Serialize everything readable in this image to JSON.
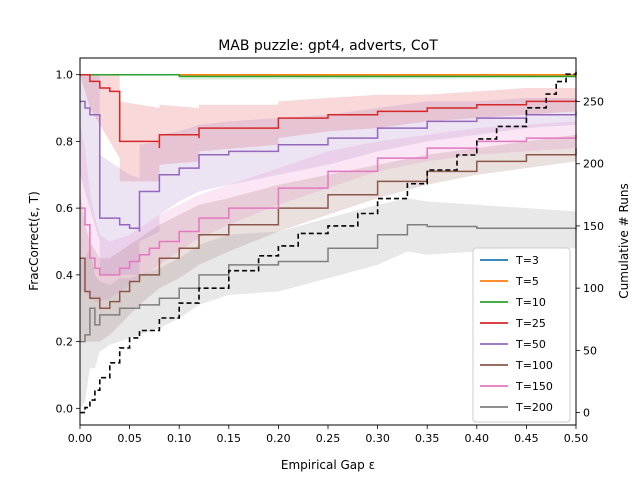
{
  "chart_data": {
    "type": "line",
    "title": "MAB puzzle: gpt4, adverts, CoT",
    "xlabel": "Empirical Gap ε",
    "ylabel": "FracCorrect(ε, T)",
    "y2label": "Cumulative # Runs",
    "xlim": [
      0.0,
      0.5
    ],
    "ylim": [
      -0.05,
      1.05
    ],
    "y2lim": [
      -10,
      285
    ],
    "grid": false,
    "legend_position": "lower-right",
    "x_ticks": [
      "0.00",
      "0.05",
      "0.10",
      "0.15",
      "0.20",
      "0.25",
      "0.30",
      "0.35",
      "0.40",
      "0.45",
      "0.50"
    ],
    "y_ticks": [
      "0.0",
      "0.2",
      "0.4",
      "0.6",
      "0.8",
      "1.0"
    ],
    "y2_ticks": [
      "0",
      "50",
      "100",
      "150",
      "200",
      "250"
    ],
    "x_tick_values": [
      0.0,
      0.05,
      0.1,
      0.15,
      0.2,
      0.25,
      0.3,
      0.35,
      0.4,
      0.45,
      0.5
    ],
    "y_tick_values": [
      0.0,
      0.2,
      0.4,
      0.6,
      0.8,
      1.0
    ],
    "y2_tick_values": [
      0,
      50,
      100,
      150,
      200,
      250
    ],
    "series": [
      {
        "name": "T=3",
        "color": "#1f77b4",
        "x": [
          0.0,
          0.5
        ],
        "y": [
          1.0,
          1.0
        ],
        "lo": [
          1.0,
          1.0
        ],
        "hi": [
          1.0,
          1.0
        ]
      },
      {
        "name": "T=5",
        "color": "#ff7f0e",
        "x": [
          0.0,
          0.5
        ],
        "y": [
          1.0,
          1.0
        ],
        "lo": [
          1.0,
          1.0
        ],
        "hi": [
          1.0,
          1.0
        ]
      },
      {
        "name": "T=10",
        "color": "#2ca02c",
        "x": [
          0.0,
          0.1,
          0.1,
          0.5
        ],
        "y": [
          1.0,
          1.0,
          0.995,
          0.995
        ],
        "lo": [
          1.0,
          1.0,
          0.985,
          0.99
        ],
        "hi": [
          1.0,
          1.0,
          1.0,
          1.0
        ]
      },
      {
        "name": "T=25",
        "color": "#d62728",
        "x": [
          0.0,
          0.01,
          0.02,
          0.03,
          0.04,
          0.04,
          0.08,
          0.08,
          0.12,
          0.12,
          0.2,
          0.2,
          0.25,
          0.3,
          0.35,
          0.4,
          0.45,
          0.5
        ],
        "y": [
          1.0,
          0.98,
          0.96,
          0.95,
          0.94,
          0.8,
          0.78,
          0.82,
          0.81,
          0.84,
          0.85,
          0.87,
          0.88,
          0.89,
          0.9,
          0.91,
          0.92,
          0.925
        ],
        "lo": [
          1.0,
          0.9,
          0.85,
          0.8,
          0.75,
          0.68,
          0.68,
          0.73,
          0.74,
          0.77,
          0.79,
          0.81,
          0.83,
          0.84,
          0.86,
          0.87,
          0.88,
          0.89
        ],
        "hi": [
          1.0,
          1.0,
          1.0,
          1.0,
          1.0,
          0.92,
          0.9,
          0.91,
          0.9,
          0.91,
          0.91,
          0.92,
          0.93,
          0.94,
          0.94,
          0.95,
          0.96,
          0.96
        ]
      },
      {
        "name": "T=50",
        "color": "#9467bd",
        "x": [
          0.0,
          0.005,
          0.01,
          0.015,
          0.02,
          0.02,
          0.04,
          0.05,
          0.06,
          0.06,
          0.08,
          0.08,
          0.1,
          0.12,
          0.15,
          0.2,
          0.25,
          0.3,
          0.35,
          0.4,
          0.45,
          0.5
        ],
        "y": [
          0.92,
          0.9,
          0.88,
          0.88,
          0.86,
          0.57,
          0.55,
          0.54,
          0.53,
          0.65,
          0.66,
          0.7,
          0.72,
          0.76,
          0.77,
          0.79,
          0.81,
          0.84,
          0.86,
          0.87,
          0.88,
          0.89
        ],
        "lo": [
          0.7,
          0.65,
          0.6,
          0.55,
          0.5,
          0.4,
          0.4,
          0.4,
          0.4,
          0.5,
          0.53,
          0.58,
          0.62,
          0.65,
          0.67,
          0.7,
          0.73,
          0.77,
          0.8,
          0.82,
          0.84,
          0.85
        ],
        "hi": [
          1.0,
          1.0,
          1.0,
          1.0,
          1.0,
          0.76,
          0.72,
          0.7,
          0.69,
          0.79,
          0.8,
          0.82,
          0.83,
          0.85,
          0.86,
          0.87,
          0.88,
          0.9,
          0.92,
          0.92,
          0.93,
          0.93
        ]
      },
      {
        "name": "T=100",
        "color": "#8c564b",
        "x": [
          0.0,
          0.005,
          0.01,
          0.02,
          0.03,
          0.04,
          0.05,
          0.06,
          0.08,
          0.1,
          0.12,
          0.15,
          0.2,
          0.25,
          0.3,
          0.35,
          0.4,
          0.45,
          0.5
        ],
        "y": [
          0.45,
          0.35,
          0.33,
          0.3,
          0.32,
          0.35,
          0.38,
          0.4,
          0.45,
          0.48,
          0.52,
          0.55,
          0.6,
          0.64,
          0.68,
          0.71,
          0.74,
          0.76,
          0.78
        ],
        "lo": [
          0.2,
          0.2,
          0.2,
          0.2,
          0.22,
          0.25,
          0.28,
          0.31,
          0.36,
          0.39,
          0.43,
          0.47,
          0.53,
          0.58,
          0.63,
          0.67,
          0.7,
          0.72,
          0.74
        ],
        "hi": [
          0.65,
          0.55,
          0.5,
          0.45,
          0.45,
          0.47,
          0.49,
          0.51,
          0.55,
          0.58,
          0.61,
          0.63,
          0.67,
          0.7,
          0.73,
          0.76,
          0.78,
          0.8,
          0.82
        ]
      },
      {
        "name": "T=150",
        "color": "#e377c2",
        "x": [
          0.0,
          0.005,
          0.01,
          0.015,
          0.02,
          0.03,
          0.04,
          0.05,
          0.06,
          0.07,
          0.08,
          0.1,
          0.12,
          0.15,
          0.2,
          0.25,
          0.3,
          0.35,
          0.4,
          0.45,
          0.5
        ],
        "y": [
          0.6,
          0.55,
          0.45,
          0.42,
          0.4,
          0.4,
          0.42,
          0.44,
          0.46,
          0.48,
          0.5,
          0.53,
          0.57,
          0.6,
          0.66,
          0.71,
          0.75,
          0.78,
          0.8,
          0.81,
          0.82
        ],
        "lo": [
          0.35,
          0.35,
          0.33,
          0.32,
          0.32,
          0.33,
          0.35,
          0.37,
          0.39,
          0.41,
          0.43,
          0.47,
          0.51,
          0.55,
          0.61,
          0.66,
          0.71,
          0.74,
          0.76,
          0.77,
          0.78
        ],
        "hi": [
          0.85,
          0.78,
          0.65,
          0.57,
          0.52,
          0.5,
          0.51,
          0.52,
          0.54,
          0.56,
          0.58,
          0.61,
          0.64,
          0.67,
          0.72,
          0.77,
          0.8,
          0.82,
          0.84,
          0.85,
          0.86
        ]
      },
      {
        "name": "T=200",
        "color": "#7f7f7f",
        "x": [
          0.0,
          0.005,
          0.01,
          0.015,
          0.02,
          0.03,
          0.04,
          0.05,
          0.06,
          0.08,
          0.1,
          0.12,
          0.15,
          0.2,
          0.25,
          0.3,
          0.33,
          0.35,
          0.4,
          0.45,
          0.5
        ],
        "y": [
          0.2,
          0.22,
          0.3,
          0.25,
          0.28,
          0.28,
          0.3,
          0.3,
          0.31,
          0.33,
          0.36,
          0.4,
          0.43,
          0.44,
          0.48,
          0.52,
          0.55,
          0.545,
          0.54,
          0.54,
          0.535
        ],
        "lo": [
          0.0,
          0.02,
          0.12,
          0.12,
          0.17,
          0.19,
          0.2,
          0.21,
          0.22,
          0.24,
          0.27,
          0.31,
          0.34,
          0.35,
          0.39,
          0.43,
          0.47,
          0.46,
          0.47,
          0.48,
          0.48
        ],
        "hi": [
          0.45,
          0.45,
          0.48,
          0.4,
          0.38,
          0.37,
          0.39,
          0.39,
          0.4,
          0.42,
          0.45,
          0.49,
          0.52,
          0.53,
          0.57,
          0.61,
          0.63,
          0.62,
          0.61,
          0.6,
          0.59
        ]
      }
    ],
    "cumulative_runs": {
      "name": "Cumulative # Runs",
      "color": "#000000",
      "style": "dashed",
      "axis": "y2",
      "x": [
        0.0,
        0.005,
        0.01,
        0.015,
        0.02,
        0.03,
        0.04,
        0.05,
        0.06,
        0.08,
        0.1,
        0.12,
        0.15,
        0.18,
        0.2,
        0.22,
        0.25,
        0.28,
        0.3,
        0.33,
        0.35,
        0.38,
        0.4,
        0.42,
        0.45,
        0.47,
        0.48,
        0.49,
        0.5
      ],
      "y": [
        0,
        4,
        10,
        18,
        28,
        40,
        52,
        60,
        66,
        76,
        88,
        100,
        114,
        126,
        134,
        144,
        150,
        160,
        172,
        184,
        195,
        207,
        220,
        230,
        245,
        256,
        266,
        272,
        274
      ]
    }
  }
}
